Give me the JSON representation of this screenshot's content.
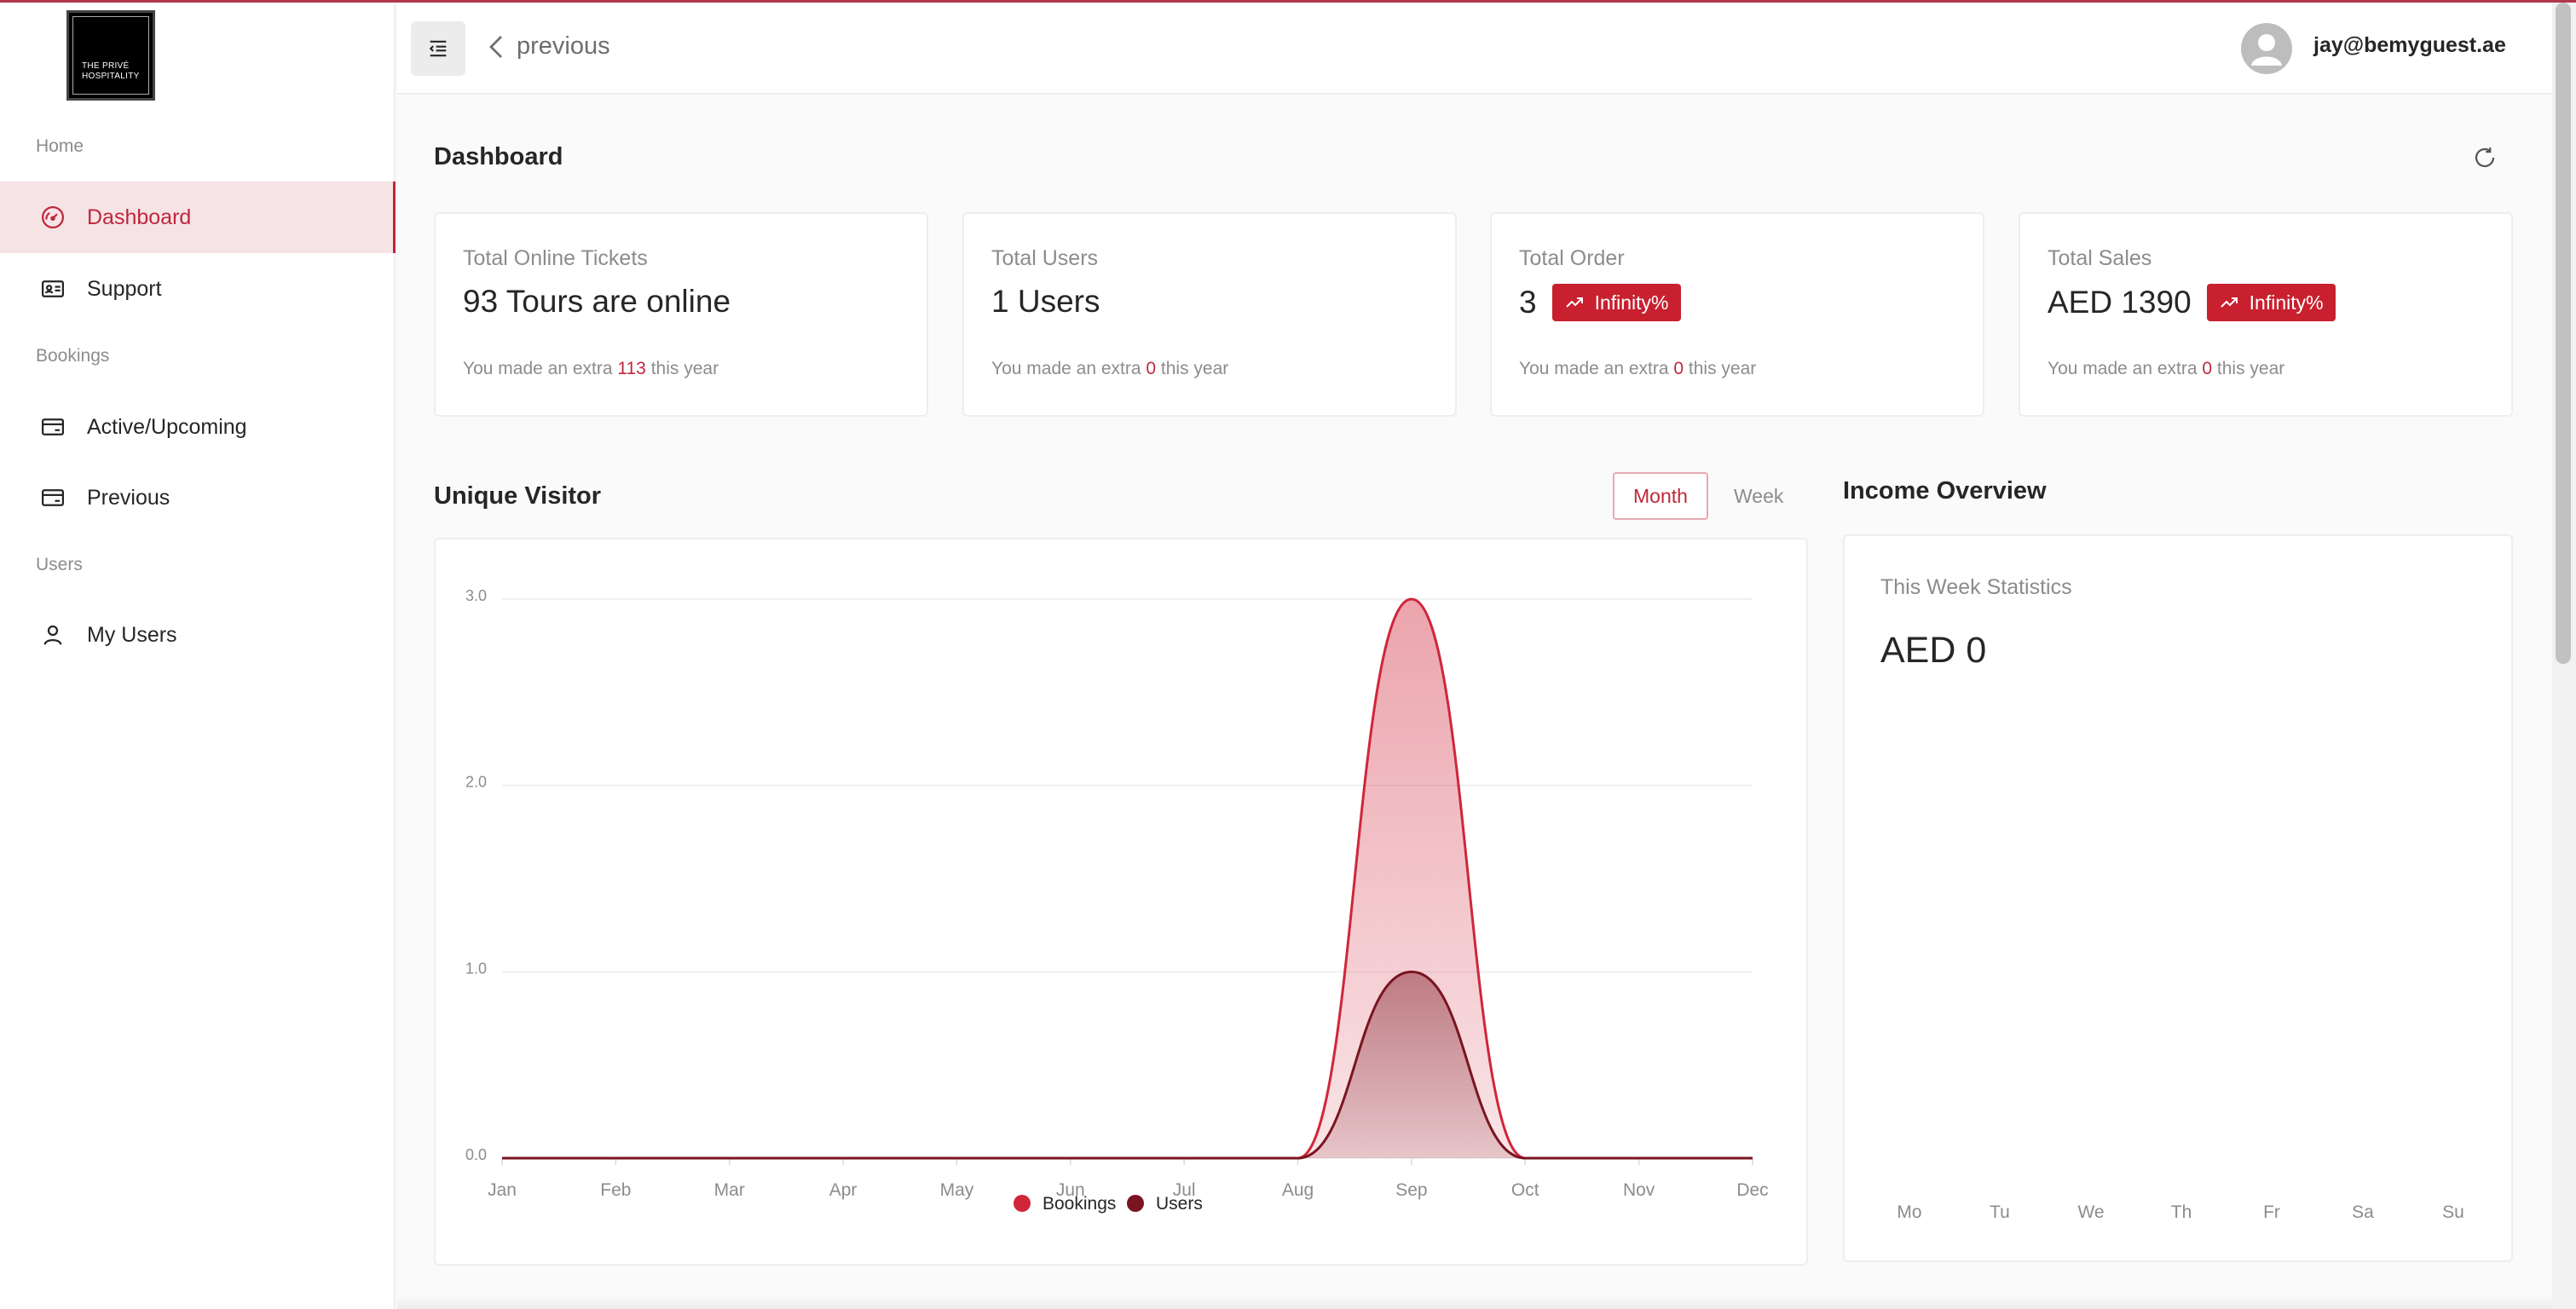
{
  "brand": {
    "logo_text": "THE PRIVÉ HOSPITALITY"
  },
  "sidebar": {
    "sections": [
      {
        "label": "Home"
      },
      {
        "label": "Bookings"
      },
      {
        "label": "Users"
      }
    ],
    "items": [
      {
        "label": "Dashboard",
        "icon": "gauge-icon",
        "active": true
      },
      {
        "label": "Support",
        "icon": "id-card-icon"
      },
      {
        "label": "Active/Upcoming",
        "icon": "credit-card-icon"
      },
      {
        "label": "Previous",
        "icon": "credit-card-icon"
      },
      {
        "label": "My Users",
        "icon": "user-icon"
      }
    ]
  },
  "header": {
    "back_label": "previous",
    "user_email": "jay@bemyguest.ae"
  },
  "page": {
    "title": "Dashboard"
  },
  "stats": [
    {
      "label": "Total Online Tickets",
      "value": "93 Tours are online",
      "note_prefix": "You made an extra",
      "note_value": "113",
      "note_suffix": "this year"
    },
    {
      "label": "Total Users",
      "value": "1 Users",
      "note_prefix": "You made an extra",
      "note_value": "0",
      "note_suffix": "this year"
    },
    {
      "label": "Total Order",
      "value": "3",
      "badge": "Infinity%",
      "note_prefix": "You made an extra",
      "note_value": "0",
      "note_suffix": "this year"
    },
    {
      "label": "Total Sales",
      "value": "AED 1390",
      "badge": "Infinity%",
      "note_prefix": "You made an extra",
      "note_value": "0",
      "note_suffix": "this year"
    }
  ],
  "visitor": {
    "title": "Unique Visitor",
    "toggle": {
      "month": "Month",
      "week": "Week",
      "selected": "Month"
    }
  },
  "income": {
    "title": "Income Overview",
    "label": "This Week Statistics",
    "value": "AED 0",
    "days": [
      "Mo",
      "Tu",
      "We",
      "Th",
      "Fr",
      "Sa",
      "Su"
    ]
  },
  "colors": {
    "accent": "#c0283b",
    "bookings": "#d0263a",
    "users": "#7a1420"
  },
  "chart_data": {
    "type": "area",
    "categories": [
      "Jan",
      "Feb",
      "Mar",
      "Apr",
      "May",
      "Jun",
      "Jul",
      "Aug",
      "Sep",
      "Oct",
      "Nov",
      "Dec"
    ],
    "series": [
      {
        "name": "Bookings",
        "values": [
          0,
          0,
          0,
          0,
          0,
          0,
          0,
          0,
          3,
          0,
          0,
          0
        ]
      },
      {
        "name": "Users",
        "values": [
          0,
          0,
          0,
          0,
          0,
          0,
          0,
          0,
          1,
          0,
          0,
          0
        ]
      }
    ],
    "y_ticks": [
      "0.0",
      "1.0",
      "2.0",
      "3.0"
    ],
    "ylim": [
      0,
      3
    ],
    "grid": true,
    "legend": "bottom-center"
  }
}
